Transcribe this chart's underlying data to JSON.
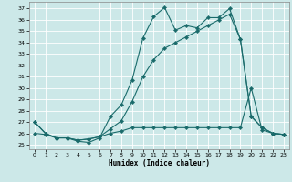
{
  "bg_color": "#cce8e8",
  "grid_color": "#ffffff",
  "line_color": "#1a6b6b",
  "xlabel": "Humidex (Indice chaleur)",
  "xlim": [
    -0.5,
    23.5
  ],
  "ylim": [
    24.6,
    37.6
  ],
  "xticks": [
    0,
    1,
    2,
    3,
    4,
    5,
    6,
    7,
    8,
    9,
    10,
    11,
    12,
    13,
    14,
    15,
    16,
    17,
    18,
    19,
    20,
    21,
    22,
    23
  ],
  "yticks": [
    25,
    26,
    27,
    28,
    29,
    30,
    31,
    32,
    33,
    34,
    35,
    36,
    37
  ],
  "line1_x": [
    0,
    1,
    2,
    3,
    4,
    5,
    6,
    7,
    8,
    9,
    10,
    11,
    12,
    13,
    14,
    15,
    16,
    17,
    18,
    19,
    20,
    21,
    22,
    23
  ],
  "line1_y": [
    27.0,
    26.0,
    25.6,
    25.6,
    25.3,
    25.2,
    25.6,
    27.5,
    28.5,
    30.7,
    34.4,
    36.3,
    37.1,
    35.1,
    35.5,
    35.3,
    36.2,
    36.2,
    37.0,
    34.3,
    27.5,
    26.5,
    26.0,
    25.9
  ],
  "line2_x": [
    0,
    1,
    2,
    3,
    4,
    5,
    6,
    7,
    8,
    9,
    10,
    11,
    12,
    13,
    14,
    15,
    16,
    17,
    18,
    19,
    20,
    21,
    22,
    23
  ],
  "line2_y": [
    27.0,
    26.0,
    25.6,
    25.6,
    25.4,
    25.5,
    25.7,
    26.4,
    27.1,
    28.8,
    31.0,
    32.5,
    33.5,
    34.0,
    34.5,
    35.0,
    35.5,
    36.0,
    36.5,
    34.3,
    27.5,
    26.5,
    26.0,
    25.9
  ],
  "line3_x": [
    0,
    1,
    2,
    3,
    4,
    5,
    6,
    7,
    8,
    9,
    10,
    11,
    12,
    13,
    14,
    15,
    16,
    17,
    18,
    19,
    20,
    21,
    22,
    23
  ],
  "line3_y": [
    26.0,
    25.9,
    25.6,
    25.6,
    25.4,
    25.5,
    25.7,
    26.0,
    26.2,
    26.5,
    26.5,
    26.5,
    26.5,
    26.5,
    26.5,
    26.5,
    26.5,
    26.5,
    26.5,
    26.5,
    30.0,
    26.3,
    26.0,
    25.9
  ]
}
